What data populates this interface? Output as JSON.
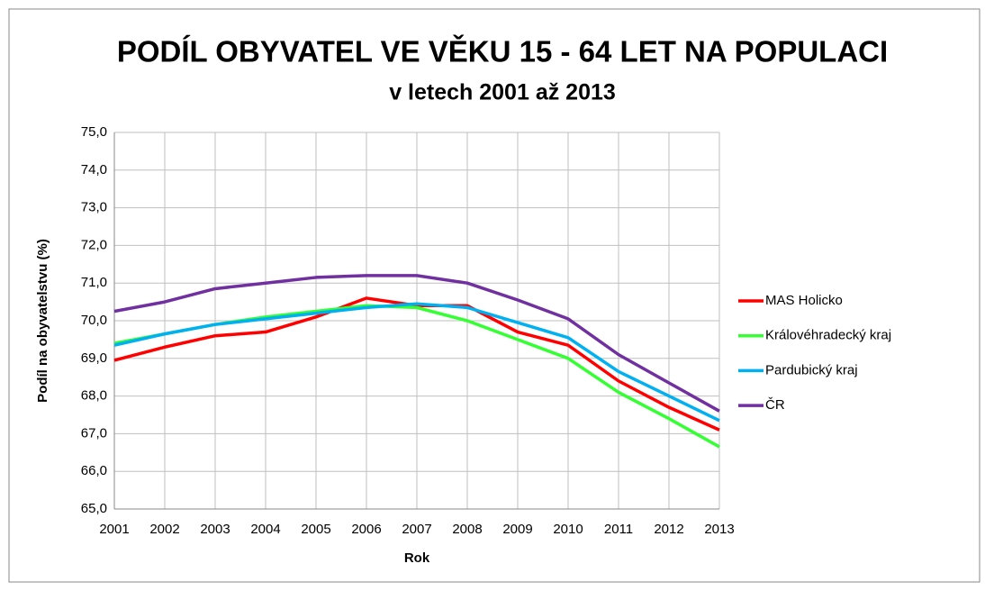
{
  "chart_data": {
    "type": "line",
    "title": "PODÍL OBYVATEL VE VĚKU 15 - 64 LET NA POPULACI",
    "subtitle": "v letech 2001 až 2013",
    "x_label": "Rok",
    "y_label": "Podíl na obyvatelstvu (%)",
    "categories": [
      "2001",
      "2002",
      "2003",
      "2004",
      "2005",
      "2006",
      "2007",
      "2008",
      "2009",
      "2010",
      "2011",
      "2012",
      "2013"
    ],
    "series": [
      {
        "name": "MAS Holicko",
        "color": "#ff0000",
        "values": [
          68.95,
          69.3,
          69.6,
          69.7,
          70.1,
          70.6,
          70.4,
          70.4,
          69.7,
          69.35,
          68.4,
          67.7,
          67.1
        ]
      },
      {
        "name": "Královéhradecký kraj",
        "color": "#33ff33",
        "values": [
          69.4,
          69.65,
          69.9,
          70.1,
          70.25,
          70.4,
          70.35,
          70.0,
          69.5,
          69.0,
          68.1,
          67.4,
          66.65
        ]
      },
      {
        "name": "Pardubický kraj",
        "color": "#00b0f0",
        "values": [
          69.35,
          69.65,
          69.9,
          70.05,
          70.2,
          70.35,
          70.45,
          70.35,
          69.95,
          69.55,
          68.65,
          68.0,
          67.35
        ]
      },
      {
        "name": "ČR",
        "color": "#7030a0",
        "values": [
          70.25,
          70.5,
          70.85,
          71.0,
          71.15,
          71.2,
          71.2,
          71.0,
          70.55,
          70.05,
          69.1,
          68.35,
          67.6
        ]
      }
    ],
    "ylim": [
      65,
      75
    ],
    "yticks": [
      {
        "value": 65,
        "label": "65,0"
      },
      {
        "value": 66,
        "label": "66,0"
      },
      {
        "value": 67,
        "label": "67,0"
      },
      {
        "value": 68,
        "label": "68,0"
      },
      {
        "value": 69,
        "label": "69,0"
      },
      {
        "value": 70,
        "label": "70,0"
      },
      {
        "value": 71,
        "label": "71,0"
      },
      {
        "value": 72,
        "label": "72,0"
      },
      {
        "value": 73,
        "label": "73,0"
      },
      {
        "value": 74,
        "label": "74,0"
      },
      {
        "value": 75,
        "label": "75,0"
      }
    ],
    "grid": true,
    "legend": "right"
  }
}
